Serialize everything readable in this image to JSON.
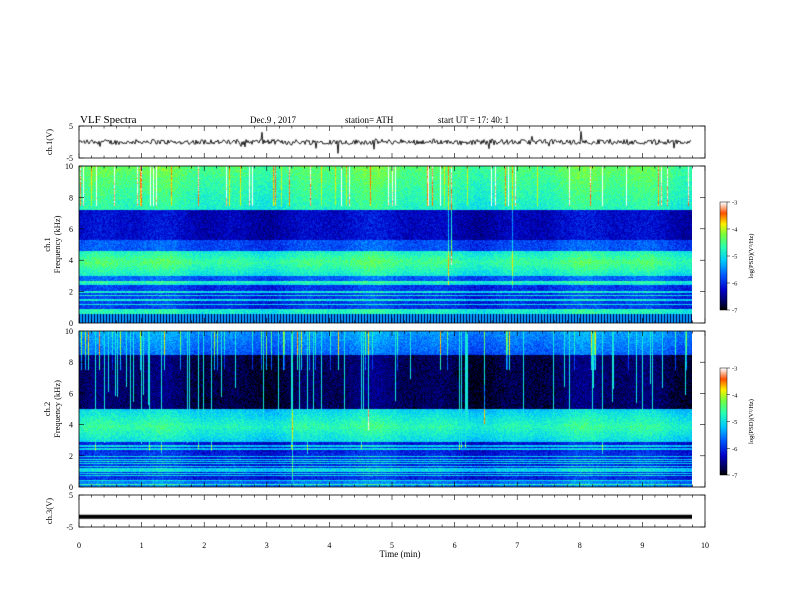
{
  "header": {
    "title": "VLF  Spectra",
    "date": "Dec.9  , 2017",
    "station": "station= ATH",
    "start": "start  UT  =   17: 40: 1"
  },
  "chart_data": [
    {
      "type": "line",
      "name": "ch1-waveform",
      "ylabel": "ch.1(V)",
      "ylim": [
        -5,
        5
      ],
      "yticks": [
        "5",
        "-5"
      ],
      "xlim": [
        0,
        10
      ],
      "y_baseline": 0,
      "data_until": 9.8
    },
    {
      "type": "heatmap",
      "name": "ch1-spectrogram",
      "ylabel": "ch.1\nFrequency  (kHz)",
      "ylim": [
        0,
        10
      ],
      "yticks": [
        "0",
        "2",
        "4",
        "6",
        "8",
        "10"
      ],
      "xlim": [
        0,
        10
      ],
      "data_until": 9.8,
      "colorbar": {
        "label": "log(PSD)(V²/Hz)",
        "ticks": [
          "-3",
          "-4",
          "-5",
          "-6",
          "-7"
        ],
        "range": [
          -7,
          -3
        ]
      }
    },
    {
      "type": "heatmap",
      "name": "ch2-spectrogram",
      "ylabel": "ch.2\nFrequency  (kHz)",
      "ylim": [
        0,
        10
      ],
      "yticks": [
        "0",
        "2",
        "4",
        "6",
        "8",
        "10"
      ],
      "xlim": [
        0,
        10
      ],
      "data_until": 9.8,
      "colorbar": {
        "label": "log(PSD)(V²/Hz)",
        "ticks": [
          "-3",
          "-4",
          "-5",
          "-6",
          "-7"
        ],
        "range": [
          -7,
          -3
        ]
      }
    },
    {
      "type": "line",
      "name": "ch3-waveform",
      "ylabel": "ch.3(V)",
      "ylim": [
        -5,
        5
      ],
      "yticks": [
        "5",
        "-5"
      ],
      "xlim": [
        0,
        10
      ],
      "y_baseline": -1.8,
      "data_until": 9.8
    }
  ],
  "xaxis": {
    "label": "Time  (min)",
    "ticks": [
      "0",
      "1",
      "2",
      "3",
      "4",
      "5",
      "6",
      "7",
      "8",
      "9",
      "10"
    ]
  }
}
